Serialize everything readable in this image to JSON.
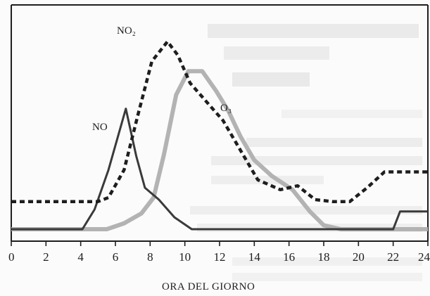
{
  "chart_data": {
    "type": "line",
    "title": "",
    "xlabel": "ORA DEL GIORNO",
    "ylabel": "",
    "xlim": [
      0,
      24
    ],
    "ylim": [
      0,
      100
    ],
    "grid": false,
    "legend": "inline labels",
    "x_ticks": [
      0,
      2,
      4,
      6,
      8,
      10,
      12,
      14,
      16,
      18,
      20,
      22,
      24
    ],
    "series": [
      {
        "name": "NO",
        "style": "solid",
        "color": "#3a3a3a",
        "points": [
          [
            0,
            0
          ],
          [
            4.1,
            0
          ],
          [
            4.8,
            10
          ],
          [
            5.6,
            30
          ],
          [
            6.6,
            61
          ],
          [
            7.2,
            37
          ],
          [
            7.7,
            21
          ],
          [
            8.5,
            15
          ],
          [
            9.4,
            6
          ],
          [
            10.4,
            0
          ],
          [
            22.0,
            0
          ],
          [
            22.4,
            9
          ],
          [
            24,
            9
          ]
        ]
      },
      {
        "name": "NO₂",
        "style": "dotted",
        "color": "#1e1e1e",
        "points": [
          [
            0,
            14
          ],
          [
            5.0,
            14
          ],
          [
            5.6,
            16
          ],
          [
            6.5,
            30
          ],
          [
            7.3,
            58
          ],
          [
            8.1,
            85
          ],
          [
            9.0,
            95
          ],
          [
            9.6,
            88
          ],
          [
            10.3,
            74
          ],
          [
            11.3,
            64
          ],
          [
            12.2,
            55
          ],
          [
            13.2,
            40
          ],
          [
            14.2,
            25
          ],
          [
            15.5,
            20
          ],
          [
            16.5,
            22
          ],
          [
            17.5,
            15
          ],
          [
            18.5,
            14
          ],
          [
            19.5,
            14
          ],
          [
            20.5,
            21
          ],
          [
            21.5,
            29
          ],
          [
            22.5,
            29
          ],
          [
            24,
            29
          ]
        ]
      },
      {
        "name": "O₃",
        "style": "solid",
        "color": "#b3b3b3",
        "points": [
          [
            0,
            0
          ],
          [
            5.5,
            0
          ],
          [
            6.5,
            3
          ],
          [
            7.5,
            8
          ],
          [
            8.2,
            16
          ],
          [
            8.8,
            38
          ],
          [
            9.5,
            68
          ],
          [
            10.2,
            80
          ],
          [
            11.0,
            80
          ],
          [
            11.8,
            70
          ],
          [
            12.5,
            60
          ],
          [
            13.2,
            47
          ],
          [
            14.0,
            35
          ],
          [
            15.0,
            27
          ],
          [
            16.2,
            20
          ],
          [
            17.2,
            9
          ],
          [
            18.0,
            2
          ],
          [
            19.0,
            0
          ],
          [
            24,
            0
          ]
        ]
      }
    ]
  },
  "labels": {
    "no": "NO",
    "no2": "NO₂",
    "o3": "O₃"
  }
}
